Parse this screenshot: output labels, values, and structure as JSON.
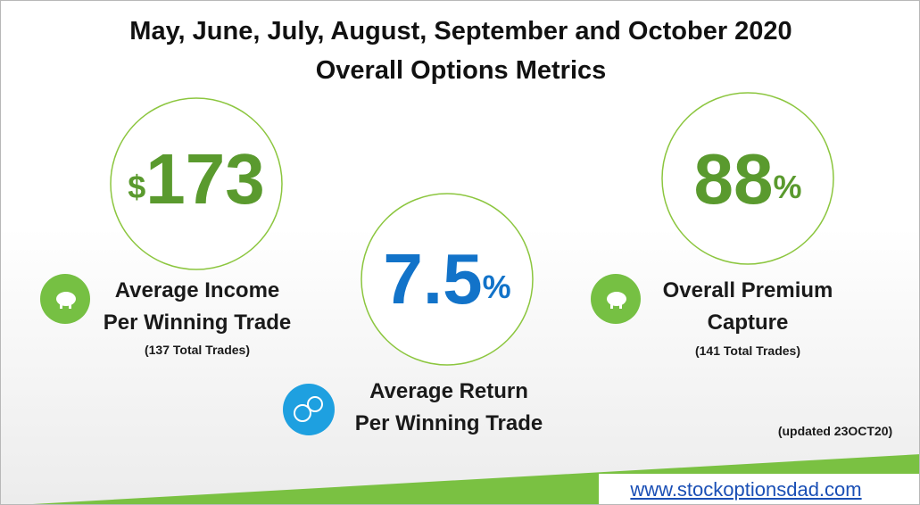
{
  "header": {
    "title_line1": "May, June, July, August, September and October 2020",
    "title_line2": "Overall Options Metrics"
  },
  "metrics": [
    {
      "prefix": "$",
      "value": "173",
      "label_line1": "Average Income",
      "label_line2": "Per Winning Trade",
      "note": "(137 Total Trades)"
    },
    {
      "value": "7.5",
      "suffix": "%",
      "label_line1": "Average Return",
      "label_line2": "Per Winning Trade"
    },
    {
      "value": "88",
      "suffix": "%",
      "label_line1": "Overall Premium",
      "label_line2": "Capture",
      "note": "(141 Total Trades)"
    }
  ],
  "footer": {
    "updated": "(updated 23OCT20)",
    "url": "www.stockoptionsdad.com"
  }
}
